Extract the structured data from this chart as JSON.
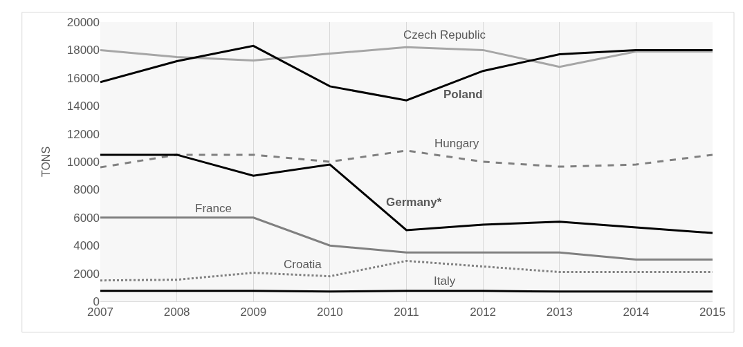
{
  "chart_data": {
    "type": "line",
    "ylabel": "TONS",
    "categories": [
      "2007",
      "2008",
      "2009",
      "2010",
      "2011",
      "2012",
      "2013",
      "2014",
      "2015"
    ],
    "series": [
      {
        "name": "Czech Republic",
        "color": "#a6a6a6",
        "line_style": "solid",
        "values": [
          18000,
          17500,
          17250,
          17750,
          18200,
          18000,
          16800,
          17900,
          17900
        ]
      },
      {
        "name": "Poland",
        "color": "#000000",
        "line_style": "solid",
        "values": [
          15700,
          17200,
          18300,
          15400,
          14400,
          16500,
          17700,
          18000,
          18000
        ]
      },
      {
        "name": "Hungary",
        "color": "#808080",
        "line_style": "dashed",
        "values": [
          9600,
          10500,
          10500,
          10000,
          10800,
          10000,
          9650,
          9800,
          10500
        ]
      },
      {
        "name": "Germany*",
        "color": "#000000",
        "line_style": "solid",
        "values": [
          10500,
          10500,
          9000,
          9800,
          5100,
          5500,
          5700,
          5300,
          4900
        ]
      },
      {
        "name": "France",
        "color": "#808080",
        "line_style": "solid",
        "values": [
          6000,
          6000,
          6000,
          4000,
          3500,
          3500,
          3500,
          3000,
          3000
        ]
      },
      {
        "name": "Croatia",
        "color": "#808080",
        "line_style": "dotted",
        "values": [
          1500,
          1550,
          2050,
          1800,
          2900,
          2500,
          2100,
          2100,
          2100
        ]
      },
      {
        "name": "Italy",
        "color": "#000000",
        "line_style": "solid",
        "values": [
          750,
          750,
          750,
          700,
          750,
          750,
          700,
          700,
          700
        ]
      }
    ],
    "ylim": [
      0,
      20000
    ],
    "yticks": [
      0,
      2000,
      4000,
      6000,
      8000,
      10000,
      12000,
      14000,
      16000,
      18000,
      20000
    ],
    "grid": "x",
    "legend": false,
    "marker": "none"
  }
}
